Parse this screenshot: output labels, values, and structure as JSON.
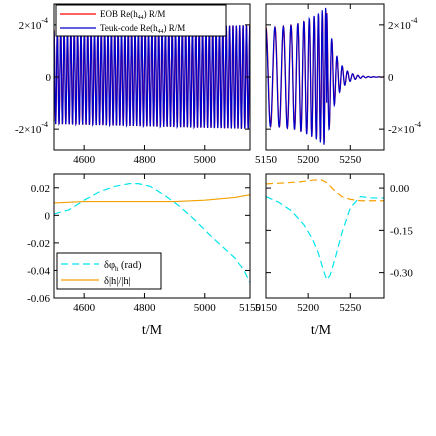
{
  "chart_data": [
    {
      "type": "line",
      "panel": "top-left",
      "xlim": [
        4500,
        5150
      ],
      "ylim": [
        -0.00028,
        0.00028
      ],
      "x_ticks": [
        4600,
        4800,
        5000,
        5150
      ],
      "x_tick_labels": [
        "4600",
        "4800",
        "5000",
        ""
      ],
      "y_ticks": [
        -0.0002,
        0,
        0.0002
      ],
      "y_tick_labels": {
        "neg": "-2×10",
        "zero": "0",
        "pos": "2×10",
        "exp": "-4"
      },
      "legend_placement": "top",
      "legend": [
        {
          "label": "EOB Re(h",
          "sub": "44",
          "tail": ") R/M",
          "color": "#ff0000"
        },
        {
          "label": "Teuk-code Re(h",
          "sub": "44",
          "tail": ") R/M",
          "color": "#0000cc"
        }
      ],
      "series": [
        {
          "name": "EOB Re(h44) R/M",
          "color": "#ff0000",
          "amplitude": 0.00019,
          "period": 11.2,
          "x_range": [
            4500,
            5150
          ]
        },
        {
          "name": "Teuk-code Re(h44) R/M",
          "color": "#0000cc",
          "amplitude": 0.00019,
          "period": 11.2,
          "x_range": [
            4500,
            5150
          ]
        }
      ]
    },
    {
      "type": "line",
      "panel": "top-right",
      "xlim": [
        5150,
        5290
      ],
      "ylim": [
        -0.00028,
        0.00028
      ],
      "x_ticks": [
        5150,
        5200,
        5250
      ],
      "x_tick_labels": [
        "5150",
        "5200",
        "5250"
      ],
      "y_ticks": [
        -0.0002,
        0,
        0.0002
      ],
      "y_tick_labels": {
        "neg": "-2×10",
        "zero": "0",
        "pos": "2×10",
        "exp": "-4"
      },
      "series": [
        {
          "name": "EOB Re(h44) R/M",
          "color": "#ff0000",
          "peak_time": 5222,
          "peak_amplitude": 0.00026
        },
        {
          "name": "Teuk-code Re(h44) R/M",
          "color": "#0000cc",
          "peak_time": 5222,
          "peak_amplitude": 0.00027
        }
      ]
    },
    {
      "type": "line",
      "panel": "bottom-left",
      "xlim": [
        4500,
        5150
      ],
      "ylim": [
        -0.06,
        0.03
      ],
      "xlabel": "t/M",
      "x_ticks": [
        4600,
        4800,
        5000,
        5150
      ],
      "x_tick_labels": [
        "4600",
        "4800",
        "5000",
        "5150"
      ],
      "y_ticks": [
        0.02,
        0,
        -0.02,
        -0.04,
        -0.06
      ],
      "y_tick_labels": [
        "0.02",
        "0",
        "-0.02",
        "-0.04",
        "-0.06"
      ],
      "legend_placement": "lower-left",
      "legend": [
        {
          "label": "δφ",
          "sub": "h",
          "tail": " (rad)",
          "color": "#00e5ee"
        },
        {
          "label": "δ|h|/|h|",
          "sub": "",
          "tail": "",
          "color": "#f5a000"
        }
      ],
      "series": [
        {
          "name": "δφh (rad)",
          "color": "#00e5ee",
          "x": [
            4500,
            4550,
            4600,
            4650,
            4700,
            4750,
            4780,
            4820,
            4870,
            4920,
            4970,
            5020,
            5070,
            5100,
            5130,
            5150
          ],
          "y": [
            0.001,
            0.004,
            0.011,
            0.017,
            0.021,
            0.023,
            0.023,
            0.021,
            0.014,
            0.006,
            -0.004,
            -0.015,
            -0.025,
            -0.031,
            -0.04,
            -0.049
          ]
        },
        {
          "name": "δ|h|/|h|",
          "color": "#f5a000",
          "x": [
            4500,
            4600,
            4700,
            4800,
            4900,
            5000,
            5050,
            5100,
            5150
          ],
          "y": [
            0.009,
            0.01,
            0.01,
            0.01,
            0.01,
            0.011,
            0.012,
            0.013,
            0.015
          ]
        }
      ]
    },
    {
      "type": "line",
      "panel": "bottom-right",
      "xlim": [
        5150,
        5290
      ],
      "ylim": [
        -0.39,
        0.05
      ],
      "xlabel": "t/M",
      "x_ticks": [
        5150,
        5200,
        5250
      ],
      "x_tick_labels": [
        "5150",
        "5200",
        "5250"
      ],
      "y_ticks": [
        0,
        -0.15,
        -0.3
      ],
      "y_tick_labels": [
        "0.00",
        "-0.15",
        "-0.30"
      ],
      "series": [
        {
          "name": "δφh (rad)",
          "color": "#00e5ee",
          "x": [
            5150,
            5165,
            5180,
            5195,
            5205,
            5212,
            5218,
            5222,
            5226,
            5232,
            5240,
            5250,
            5262,
            5275,
            5290
          ],
          "y": [
            -0.03,
            -0.05,
            -0.08,
            -0.13,
            -0.18,
            -0.23,
            -0.29,
            -0.325,
            -0.31,
            -0.25,
            -0.16,
            -0.07,
            -0.03,
            -0.035,
            -0.035
          ]
        },
        {
          "name": "δ|h|/|h|",
          "color": "#f5a000",
          "x": [
            5150,
            5170,
            5190,
            5205,
            5215,
            5222,
            5230,
            5240,
            5250,
            5262,
            5275,
            5290
          ],
          "y": [
            0.015,
            0.018,
            0.022,
            0.028,
            0.03,
            0.02,
            -0.005,
            -0.03,
            -0.04,
            -0.045,
            -0.045,
            -0.045
          ]
        }
      ]
    }
  ]
}
